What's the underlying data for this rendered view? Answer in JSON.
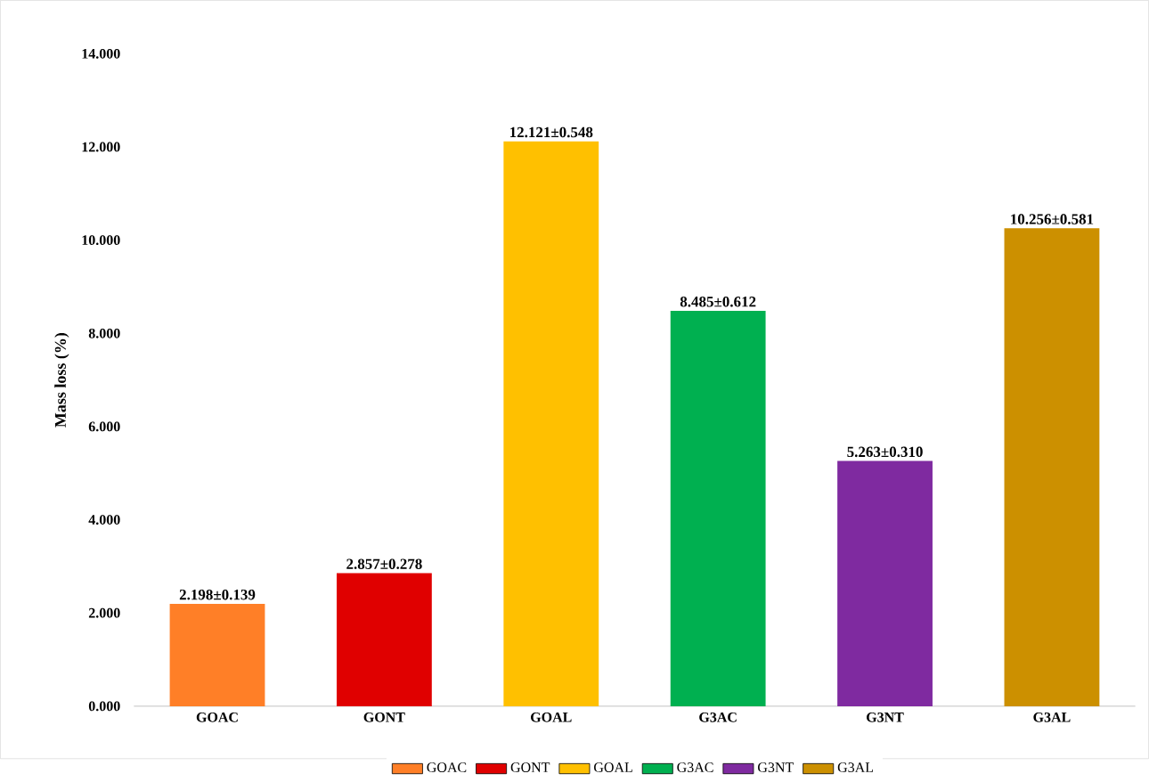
{
  "chart_data": {
    "type": "bar",
    "ylabel": "Mass  loss (%)",
    "categories": [
      "GOAC",
      "GONT",
      "GOAL",
      "G3AC",
      "G3NT",
      "G3AL"
    ],
    "series": [
      {
        "name": "GOAC",
        "color": "#ff7f27",
        "values": [
          2.198,
          null,
          null,
          null,
          null,
          null
        ],
        "value_labels": [
          "2.198±0.139",
          null,
          null,
          null,
          null,
          null
        ]
      },
      {
        "name": "GONT",
        "color": "#e00000",
        "values": [
          null,
          2.857,
          null,
          null,
          null,
          null
        ],
        "value_labels": [
          null,
          "2.857±0.278",
          null,
          null,
          null,
          null
        ]
      },
      {
        "name": "GOAL",
        "color": "#ffc000",
        "values": [
          null,
          null,
          12.121,
          null,
          null,
          null
        ],
        "value_labels": [
          null,
          null,
          "12.121±0.548",
          null,
          null,
          null
        ]
      },
      {
        "name": "G3AC",
        "color": "#00b050",
        "values": [
          null,
          null,
          null,
          8.485,
          null,
          null
        ],
        "value_labels": [
          null,
          null,
          null,
          "8.485±0.612",
          null,
          null
        ]
      },
      {
        "name": "G3NT",
        "color": "#7f2aa0",
        "values": [
          null,
          null,
          null,
          null,
          5.263,
          null
        ],
        "value_labels": [
          null,
          null,
          null,
          null,
          "5.263±0.310",
          null
        ]
      },
      {
        "name": "G3AL",
        "color": "#cc9000",
        "values": [
          null,
          null,
          null,
          null,
          null,
          10.256
        ],
        "value_labels": [
          null,
          null,
          null,
          null,
          null,
          "10.256±0.581"
        ]
      }
    ],
    "ylim": [
      0,
      14
    ],
    "yticks": [
      {
        "value": 0,
        "label": "0.000"
      },
      {
        "value": 2,
        "label": "2.000"
      },
      {
        "value": 4,
        "label": "4.000"
      },
      {
        "value": 6,
        "label": "6.000"
      },
      {
        "value": 8,
        "label": "8.000"
      },
      {
        "value": 10,
        "label": "10.000"
      },
      {
        "value": 12,
        "label": "12.000"
      },
      {
        "value": 14,
        "label": "14.000"
      }
    ],
    "legend": "bottom"
  }
}
